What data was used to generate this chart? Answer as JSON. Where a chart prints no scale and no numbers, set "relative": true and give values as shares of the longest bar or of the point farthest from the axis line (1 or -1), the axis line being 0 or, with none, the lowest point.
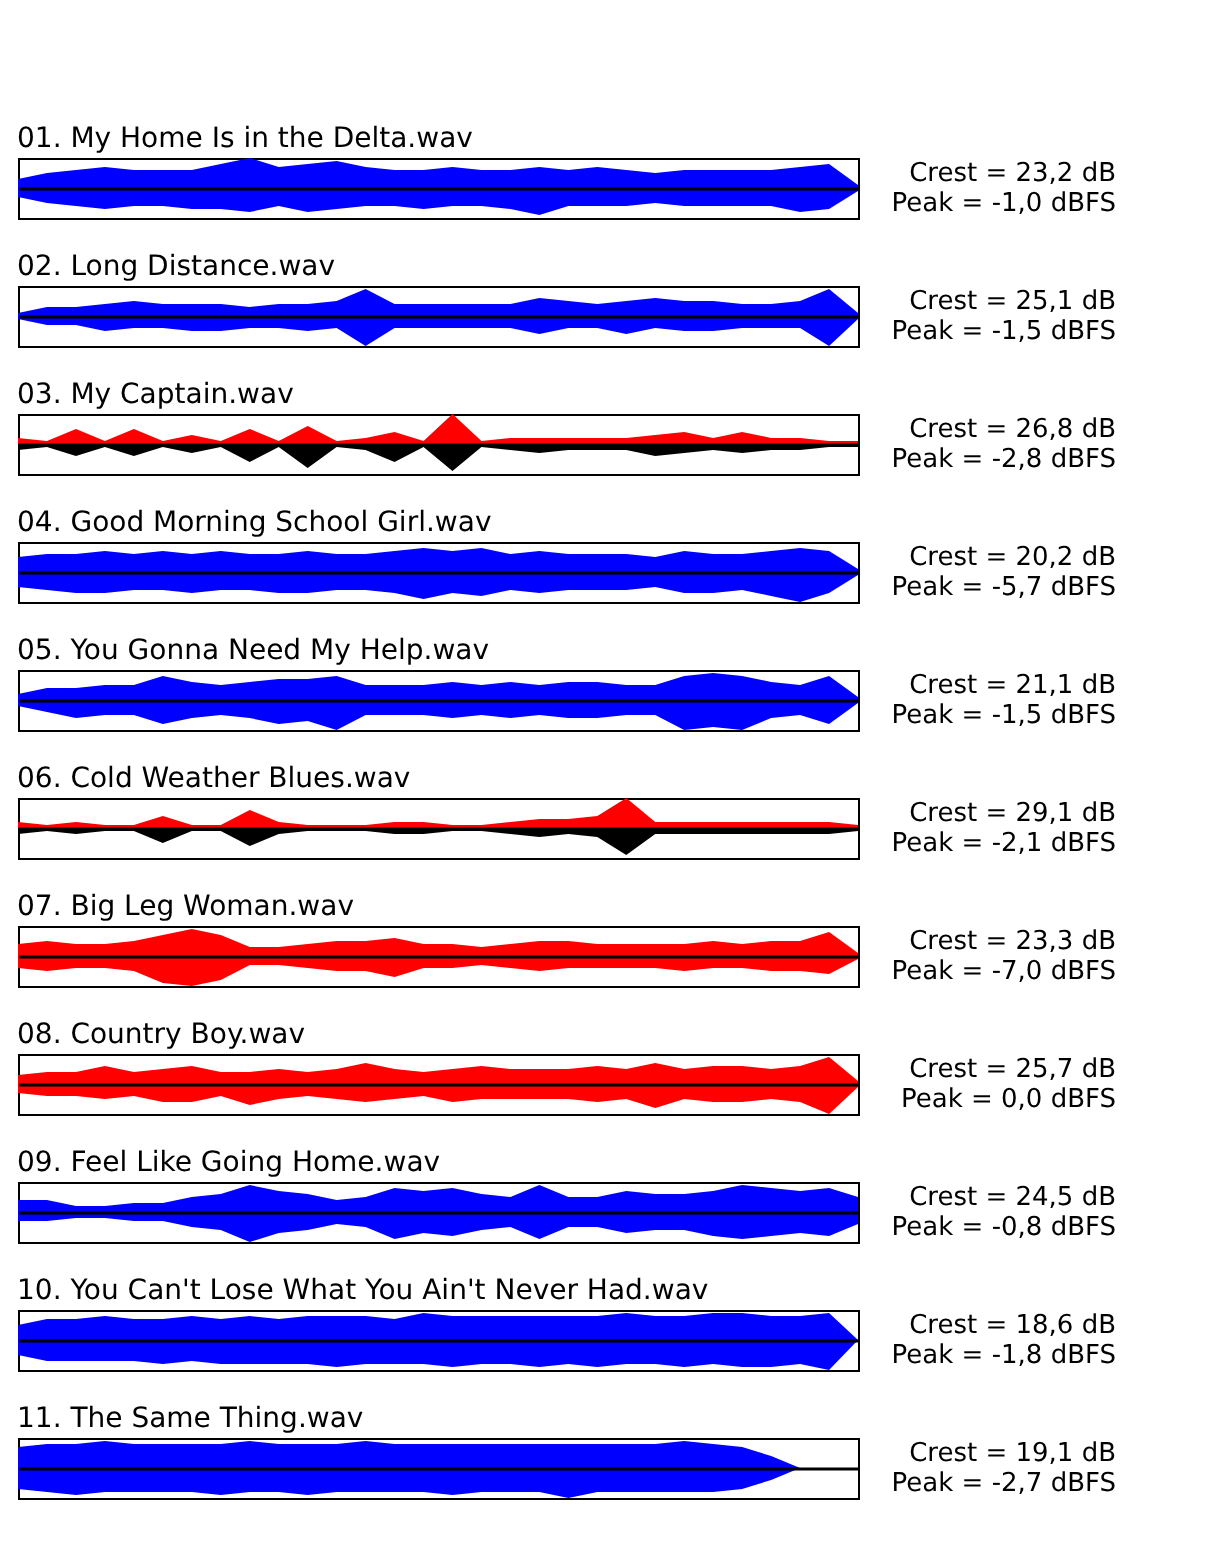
{
  "chart_data": [
    {
      "type": "area",
      "title": "01. My Home Is in the Delta.wav",
      "relative": true,
      "categories": [
        null,
        null,
        null,
        null,
        null,
        null,
        null,
        null,
        null,
        null,
        null,
        null,
        null,
        null,
        null,
        null,
        null,
        null,
        null,
        null,
        null,
        null,
        null,
        null,
        null,
        null,
        null,
        null,
        null,
        null
      ],
      "annotations": [
        "Crest = 23,2 dB",
        "Peak = -1,0 dBFS"
      ],
      "series": [
        {
          "color": "#0000ff",
          "values": [
            0.3,
            0.5,
            0.6,
            0.7,
            0.6,
            0.6,
            0.6,
            0.8,
            1,
            0.7,
            0.8,
            0.9,
            0.7,
            0.6,
            0.6,
            0.7,
            0.6,
            0.6,
            0.7,
            0.6,
            0.7,
            0.6,
            0.5,
            0.6,
            0.6,
            0.6,
            0.6,
            0.7,
            0.8,
            0.1
          ]
        },
        {
          "color": "#0000ff",
          "values": [
            -0.3,
            -0.5,
            -0.6,
            -0.7,
            -0.6,
            -0.6,
            -0.7,
            -0.7,
            -0.8,
            -0.6,
            -0.8,
            -0.7,
            -0.6,
            -0.6,
            -0.7,
            -0.6,
            -0.6,
            -0.7,
            -0.9,
            -0.6,
            -0.6,
            -0.6,
            -0.5,
            -0.6,
            -0.6,
            -0.6,
            -0.6,
            -0.8,
            -0.7,
            -0.1
          ]
        }
      ]
    },
    {
      "type": "area",
      "title": "02. Long Distance.wav",
      "relative": true,
      "categories": [
        null,
        null,
        null,
        null,
        null,
        null,
        null,
        null,
        null,
        null,
        null,
        null,
        null,
        null,
        null,
        null,
        null,
        null,
        null,
        null,
        null,
        null,
        null,
        null,
        null,
        null,
        null,
        null,
        null,
        null
      ],
      "annotations": [
        "Crest = 25,1 dB",
        "Peak = -1,5 dBFS"
      ],
      "series": [
        {
          "color": "#0000ff",
          "values": [
            0.1,
            0.3,
            0.3,
            0.4,
            0.5,
            0.4,
            0.4,
            0.4,
            0.3,
            0.4,
            0.4,
            0.5,
            0.9,
            0.4,
            0.4,
            0.4,
            0.4,
            0.4,
            0.6,
            0.5,
            0.4,
            0.5,
            0.6,
            0.5,
            0.5,
            0.4,
            0.4,
            0.5,
            0.9,
            0.1
          ]
        },
        {
          "color": "#0000ff",
          "values": [
            -0.1,
            -0.3,
            -0.3,
            -0.5,
            -0.4,
            -0.4,
            -0.5,
            -0.5,
            -0.4,
            -0.4,
            -0.5,
            -0.4,
            -1,
            -0.4,
            -0.4,
            -0.4,
            -0.4,
            -0.4,
            -0.6,
            -0.4,
            -0.4,
            -0.6,
            -0.4,
            -0.5,
            -0.5,
            -0.4,
            -0.4,
            -0.4,
            -1,
            -0.1
          ]
        }
      ]
    },
    {
      "type": "area",
      "title": "03. My Captain.wav",
      "relative": true,
      "categories": [
        null,
        null,
        null,
        null,
        null,
        null,
        null,
        null,
        null,
        null,
        null,
        null,
        null,
        null,
        null,
        null,
        null,
        null,
        null,
        null,
        null,
        null,
        null,
        null,
        null,
        null,
        null,
        null,
        null,
        null
      ],
      "annotations": [
        "Crest = 26,8 dB",
        "Peak = -2,8 dBFS"
      ],
      "series": [
        {
          "color": "#ff0000",
          "values": [
            0.2,
            0.1,
            0.5,
            0.1,
            0.5,
            0.1,
            0.3,
            0.1,
            0.5,
            0.1,
            0.6,
            0.1,
            0.2,
            0.4,
            0.1,
            1,
            0.1,
            0.2,
            0.2,
            0.2,
            0.2,
            0.2,
            0.3,
            0.4,
            0.2,
            0.4,
            0.2,
            0.2,
            0.1,
            0.1
          ]
        },
        {
          "color": "#000000",
          "values": [
            -0.2,
            -0.1,
            -0.4,
            -0.1,
            -0.4,
            -0.1,
            -0.3,
            -0.1,
            -0.6,
            -0.1,
            -0.8,
            -0.1,
            -0.2,
            -0.6,
            -0.1,
            -0.9,
            -0.1,
            -0.2,
            -0.3,
            -0.2,
            -0.2,
            -0.2,
            -0.4,
            -0.3,
            -0.2,
            -0.3,
            -0.2,
            -0.2,
            -0.1,
            -0.1
          ]
        }
      ]
    },
    {
      "type": "area",
      "title": "04. Good Morning School Girl.wav",
      "relative": true,
      "categories": [
        null,
        null,
        null,
        null,
        null,
        null,
        null,
        null,
        null,
        null,
        null,
        null,
        null,
        null,
        null,
        null,
        null,
        null,
        null,
        null,
        null,
        null,
        null,
        null,
        null,
        null,
        null,
        null,
        null,
        null
      ],
      "annotations": [
        "Crest = 20,2 dB",
        "Peak = -5,7 dBFS"
      ],
      "series": [
        {
          "color": "#0000ff",
          "values": [
            0.5,
            0.6,
            0.6,
            0.7,
            0.6,
            0.7,
            0.6,
            0.7,
            0.6,
            0.6,
            0.7,
            0.6,
            0.6,
            0.7,
            0.8,
            0.7,
            0.8,
            0.6,
            0.7,
            0.6,
            0.6,
            0.6,
            0.5,
            0.7,
            0.6,
            0.6,
            0.7,
            0.8,
            0.7,
            0.1
          ]
        },
        {
          "color": "#0000ff",
          "values": [
            -0.5,
            -0.6,
            -0.7,
            -0.7,
            -0.6,
            -0.6,
            -0.7,
            -0.6,
            -0.6,
            -0.7,
            -0.7,
            -0.6,
            -0.6,
            -0.7,
            -0.9,
            -0.7,
            -0.8,
            -0.6,
            -0.7,
            -0.6,
            -0.6,
            -0.6,
            -0.5,
            -0.7,
            -0.7,
            -0.6,
            -0.8,
            -1,
            -0.7,
            -0.1
          ]
        }
      ]
    },
    {
      "type": "area",
      "title": "05. You Gonna Need My Help.wav",
      "relative": true,
      "categories": [
        null,
        null,
        null,
        null,
        null,
        null,
        null,
        null,
        null,
        null,
        null,
        null,
        null,
        null,
        null,
        null,
        null,
        null,
        null,
        null,
        null,
        null,
        null,
        null,
        null,
        null,
        null,
        null,
        null,
        null
      ],
      "annotations": [
        "Crest = 21,1 dB",
        "Peak = -1,5 dBFS"
      ],
      "series": [
        {
          "color": "#0000ff",
          "values": [
            0.2,
            0.4,
            0.4,
            0.5,
            0.5,
            0.8,
            0.6,
            0.5,
            0.6,
            0.7,
            0.7,
            0.8,
            0.5,
            0.5,
            0.5,
            0.6,
            0.5,
            0.6,
            0.5,
            0.6,
            0.6,
            0.5,
            0.5,
            0.8,
            0.9,
            0.8,
            0.6,
            0.5,
            0.8,
            0.1
          ]
        },
        {
          "color": "#0000ff",
          "values": [
            -0.2,
            -0.4,
            -0.6,
            -0.5,
            -0.5,
            -0.8,
            -0.6,
            -0.5,
            -0.6,
            -0.8,
            -0.7,
            -1,
            -0.5,
            -0.5,
            -0.5,
            -0.6,
            -0.5,
            -0.6,
            -0.5,
            -0.6,
            -0.6,
            -0.5,
            -0.5,
            -1,
            -0.9,
            -1,
            -0.6,
            -0.5,
            -0.8,
            -0.1
          ]
        }
      ]
    },
    {
      "type": "area",
      "title": "06. Cold Weather Blues.wav",
      "relative": true,
      "categories": [
        null,
        null,
        null,
        null,
        null,
        null,
        null,
        null,
        null,
        null,
        null,
        null,
        null,
        null,
        null,
        null,
        null,
        null,
        null,
        null,
        null,
        null,
        null,
        null,
        null,
        null,
        null,
        null,
        null,
        null
      ],
      "annotations": [
        "Crest = 29,1 dB",
        "Peak = -2,1 dBFS"
      ],
      "series": [
        {
          "color": "#ff0000",
          "values": [
            0.2,
            0.1,
            0.2,
            0.1,
            0.1,
            0.4,
            0.1,
            0.1,
            0.6,
            0.2,
            0.1,
            0.1,
            0.1,
            0.2,
            0.2,
            0.1,
            0.1,
            0.2,
            0.3,
            0.3,
            0.4,
            1,
            0.2,
            0.2,
            0.2,
            0.2,
            0.2,
            0.2,
            0.2,
            0.1
          ]
        },
        {
          "color": "#000000",
          "values": [
            -0.2,
            -0.1,
            -0.2,
            -0.1,
            -0.1,
            -0.5,
            -0.1,
            -0.1,
            -0.6,
            -0.2,
            -0.1,
            -0.1,
            -0.1,
            -0.2,
            -0.2,
            -0.1,
            -0.1,
            -0.2,
            -0.3,
            -0.2,
            -0.3,
            -0.9,
            -0.2,
            -0.2,
            -0.2,
            -0.2,
            -0.2,
            -0.2,
            -0.2,
            -0.1
          ]
        }
      ]
    },
    {
      "type": "area",
      "title": "07. Big Leg Woman.wav",
      "relative": true,
      "categories": [
        null,
        null,
        null,
        null,
        null,
        null,
        null,
        null,
        null,
        null,
        null,
        null,
        null,
        null,
        null,
        null,
        null,
        null,
        null,
        null,
        null,
        null,
        null,
        null,
        null,
        null,
        null,
        null,
        null,
        null
      ],
      "annotations": [
        "Crest = 23,3 dB",
        "Peak = -7,0 dBFS"
      ],
      "series": [
        {
          "color": "#ff0000",
          "values": [
            0.4,
            0.5,
            0.4,
            0.4,
            0.5,
            0.7,
            0.9,
            0.7,
            0.3,
            0.3,
            0.4,
            0.5,
            0.5,
            0.6,
            0.4,
            0.4,
            0.3,
            0.4,
            0.5,
            0.5,
            0.4,
            0.4,
            0.4,
            0.4,
            0.5,
            0.4,
            0.5,
            0.5,
            0.8,
            0.1
          ]
        },
        {
          "color": "#ff0000",
          "values": [
            -0.4,
            -0.5,
            -0.4,
            -0.4,
            -0.5,
            -0.9,
            -1,
            -0.8,
            -0.3,
            -0.3,
            -0.4,
            -0.5,
            -0.5,
            -0.7,
            -0.4,
            -0.4,
            -0.3,
            -0.4,
            -0.5,
            -0.4,
            -0.4,
            -0.4,
            -0.4,
            -0.5,
            -0.4,
            -0.4,
            -0.5,
            -0.5,
            -0.6,
            -0.1
          ]
        }
      ]
    },
    {
      "type": "area",
      "title": "08. Country Boy.wav",
      "relative": true,
      "categories": [
        null,
        null,
        null,
        null,
        null,
        null,
        null,
        null,
        null,
        null,
        null,
        null,
        null,
        null,
        null,
        null,
        null,
        null,
        null,
        null,
        null,
        null,
        null,
        null,
        null,
        null,
        null,
        null,
        null,
        null
      ],
      "annotations": [
        "Crest = 25,7 dB",
        "Peak = 0,0 dBFS"
      ],
      "series": [
        {
          "color": "#ff0000",
          "values": [
            0.3,
            0.4,
            0.4,
            0.6,
            0.4,
            0.5,
            0.6,
            0.4,
            0.4,
            0.5,
            0.4,
            0.5,
            0.7,
            0.5,
            0.4,
            0.5,
            0.6,
            0.5,
            0.5,
            0.5,
            0.6,
            0.5,
            0.7,
            0.5,
            0.6,
            0.6,
            0.5,
            0.6,
            0.9,
            0.1
          ]
        },
        {
          "color": "#ff0000",
          "values": [
            -0.3,
            -0.4,
            -0.4,
            -0.5,
            -0.4,
            -0.6,
            -0.6,
            -0.4,
            -0.7,
            -0.5,
            -0.4,
            -0.5,
            -0.6,
            -0.5,
            -0.4,
            -0.6,
            -0.5,
            -0.5,
            -0.5,
            -0.5,
            -0.6,
            -0.5,
            -0.8,
            -0.5,
            -0.6,
            -0.6,
            -0.5,
            -0.6,
            -1,
            -0.1
          ]
        }
      ]
    },
    {
      "type": "area",
      "title": "09. Feel Like Going Home.wav",
      "relative": true,
      "categories": [
        null,
        null,
        null,
        null,
        null,
        null,
        null,
        null,
        null,
        null,
        null,
        null,
        null,
        null,
        null,
        null,
        null,
        null,
        null,
        null,
        null,
        null,
        null,
        null,
        null,
        null,
        null,
        null,
        null,
        null
      ],
      "annotations": [
        "Crest = 24,5 dB",
        "Peak = -0,8 dBFS"
      ],
      "series": [
        {
          "color": "#0000ff",
          "values": [
            0.4,
            0.4,
            0.2,
            0.2,
            0.3,
            0.3,
            0.5,
            0.6,
            0.9,
            0.7,
            0.6,
            0.4,
            0.5,
            0.8,
            0.7,
            0.8,
            0.6,
            0.5,
            0.9,
            0.5,
            0.5,
            0.7,
            0.6,
            0.6,
            0.7,
            0.9,
            0.8,
            0.7,
            0.8,
            0.5
          ]
        },
        {
          "color": "#0000ff",
          "values": [
            -0.3,
            -0.3,
            -0.2,
            -0.2,
            -0.3,
            -0.3,
            -0.5,
            -0.6,
            -1,
            -0.7,
            -0.6,
            -0.4,
            -0.5,
            -0.9,
            -0.7,
            -0.8,
            -0.6,
            -0.5,
            -0.9,
            -0.5,
            -0.5,
            -0.7,
            -0.6,
            -0.6,
            -0.8,
            -0.9,
            -0.8,
            -0.7,
            -0.8,
            -0.4
          ]
        }
      ]
    },
    {
      "type": "area",
      "title": "10. You Can't Lose What You Ain't Never Had.wav",
      "relative": true,
      "categories": [
        null,
        null,
        null,
        null,
        null,
        null,
        null,
        null,
        null,
        null,
        null,
        null,
        null,
        null,
        null,
        null,
        null,
        null,
        null,
        null,
        null,
        null,
        null,
        null,
        null,
        null,
        null,
        null,
        null,
        null
      ],
      "annotations": [
        "Crest = 18,6 dB",
        "Peak = -1,8 dBFS"
      ],
      "series": [
        {
          "color": "#0000ff",
          "values": [
            0.5,
            0.7,
            0.7,
            0.8,
            0.7,
            0.7,
            0.8,
            0.7,
            0.8,
            0.7,
            0.8,
            0.8,
            0.8,
            0.7,
            0.9,
            0.8,
            0.8,
            0.8,
            0.8,
            0.8,
            0.8,
            0.9,
            0.8,
            0.8,
            0.9,
            0.9,
            0.8,
            0.8,
            0.9,
            0
          ]
        },
        {
          "color": "#0000ff",
          "values": [
            -0.5,
            -0.7,
            -0.7,
            -0.7,
            -0.7,
            -0.8,
            -0.7,
            -0.8,
            -0.8,
            -0.8,
            -0.8,
            -0.9,
            -0.8,
            -0.8,
            -0.8,
            -0.9,
            -0.8,
            -0.8,
            -0.9,
            -0.8,
            -0.9,
            -0.8,
            -0.8,
            -0.9,
            -0.8,
            -0.9,
            -0.9,
            -0.8,
            -1,
            0
          ]
        }
      ]
    },
    {
      "type": "area",
      "title": "11. The Same Thing.wav",
      "relative": true,
      "categories": [
        null,
        null,
        null,
        null,
        null,
        null,
        null,
        null,
        null,
        null,
        null,
        null,
        null,
        null,
        null,
        null,
        null,
        null,
        null,
        null,
        null,
        null,
        null,
        null,
        null,
        null,
        null,
        null,
        null,
        null
      ],
      "annotations": [
        "Crest = 19,1 dB",
        "Peak = -2,7 dBFS"
      ],
      "series": [
        {
          "color": "#0000ff",
          "values": [
            0.7,
            0.8,
            0.8,
            0.9,
            0.8,
            0.8,
            0.8,
            0.8,
            0.9,
            0.8,
            0.8,
            0.8,
            0.9,
            0.8,
            0.8,
            0.8,
            0.8,
            0.8,
            0.8,
            0.8,
            0.8,
            0.8,
            0.8,
            0.9,
            0.8,
            0.7,
            0.4,
            0,
            0,
            0
          ]
        },
        {
          "color": "#0000ff",
          "values": [
            -0.7,
            -0.8,
            -0.9,
            -0.8,
            -0.8,
            -0.8,
            -0.8,
            -0.9,
            -0.8,
            -0.8,
            -0.9,
            -0.8,
            -0.8,
            -0.8,
            -0.8,
            -0.9,
            -0.8,
            -0.8,
            -0.8,
            -1,
            -0.8,
            -0.8,
            -0.8,
            -0.8,
            -0.8,
            -0.7,
            -0.4,
            0,
            0,
            0
          ]
        }
      ]
    }
  ]
}
